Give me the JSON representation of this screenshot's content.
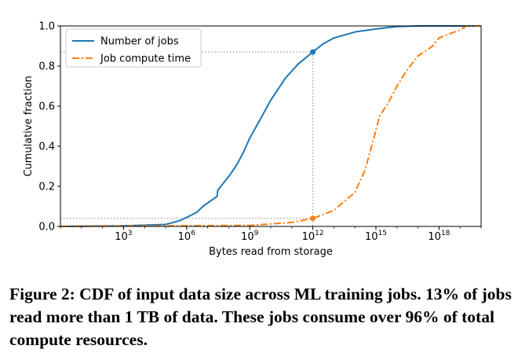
{
  "chart_data": {
    "type": "line",
    "xlabel": "Bytes read from storage",
    "ylabel": "Cumulative fraction",
    "xscale": "log",
    "xlim": [
      1,
      1e+20
    ],
    "ylim": [
      0,
      1
    ],
    "grid": false,
    "legend_position": "top-left",
    "x_ticks": [
      {
        "value": 1000.0,
        "base": "10",
        "exp": "3"
      },
      {
        "value": 1000000.0,
        "base": "10",
        "exp": "6"
      },
      {
        "value": 1000000000.0,
        "base": "10",
        "exp": "9"
      },
      {
        "value": 1000000000000.0,
        "base": "10",
        "exp": "12"
      },
      {
        "value": 1000000000000000.0,
        "base": "10",
        "exp": "15"
      },
      {
        "value": 1e+18,
        "base": "10",
        "exp": "18"
      }
    ],
    "y_ticks": [
      "0.0",
      "0.2",
      "0.4",
      "0.6",
      "0.8",
      "1.0"
    ],
    "series": [
      {
        "name": "Number of jobs",
        "color": "#1f77b4",
        "style": "solid",
        "points": [
          [
            1,
            0.0
          ],
          [
            1000.0,
            0.003
          ],
          [
            100000.0,
            0.01
          ],
          [
            200000.0,
            0.018
          ],
          [
            500000.0,
            0.03
          ],
          [
            1000000.0,
            0.045
          ],
          [
            3000000.0,
            0.07
          ],
          [
            6000000.0,
            0.1
          ],
          [
            15000000.0,
            0.13
          ],
          [
            28000000.0,
            0.15
          ],
          [
            30000000.0,
            0.18
          ],
          [
            60000000.0,
            0.22
          ],
          [
            120000000.0,
            0.26
          ],
          [
            250000000.0,
            0.31
          ],
          [
            500000000.0,
            0.37
          ],
          [
            1000000000.0,
            0.44
          ],
          [
            3000000000.0,
            0.53
          ],
          [
            10000000000.0,
            0.63
          ],
          [
            50000000000.0,
            0.74
          ],
          [
            200000000000.0,
            0.81
          ],
          [
            1000000000000.0,
            0.87
          ],
          [
            3000000000000.0,
            0.91
          ],
          [
            10000000000000.0,
            0.94
          ],
          [
            100000000000000.0,
            0.97
          ],
          [
            1000000000000000.0,
            0.985
          ],
          [
            1e+16,
            0.997
          ],
          [
            1e+17,
            1.0
          ],
          [
            1e+20,
            1.0
          ]
        ],
        "marker": [
          1000000000000.0,
          0.87
        ]
      },
      {
        "name": "Job compute time",
        "color": "#ff7f0e",
        "style": "dashdot",
        "points": [
          [
            1,
            0.0
          ],
          [
            1000000000.0,
            0.005
          ],
          [
            100000000000.0,
            0.02
          ],
          [
            1000000000000.0,
            0.04
          ],
          [
            10000000000000.0,
            0.08
          ],
          [
            100000000000000.0,
            0.17
          ],
          [
            300000000000000.0,
            0.28
          ],
          [
            700000000000000.0,
            0.42
          ],
          [
            1500000000000000.0,
            0.55
          ],
          [
            4000000000000000.0,
            0.62
          ],
          [
            1e+16,
            0.7
          ],
          [
            3e+16,
            0.78
          ],
          [
            1e+17,
            0.85
          ],
          [
            5e+17,
            0.9
          ],
          [
            1e+18,
            0.94
          ],
          [
            3e+18,
            0.96
          ],
          [
            1e+19,
            0.98
          ],
          [
            2e+19,
            1.0
          ],
          [
            1e+20,
            1.0
          ]
        ],
        "marker": [
          1000000000000.0,
          0.04
        ]
      }
    ],
    "reference_lines": [
      {
        "x": 1000000000000.0,
        "y": 0.87
      },
      {
        "x": 1000000000000.0,
        "y": 0.04
      }
    ]
  },
  "caption": "Figure 2: CDF of input data size across ML training jobs. 13% of jobs read more than 1 TB of data. These jobs consume over 96% of total compute resources."
}
